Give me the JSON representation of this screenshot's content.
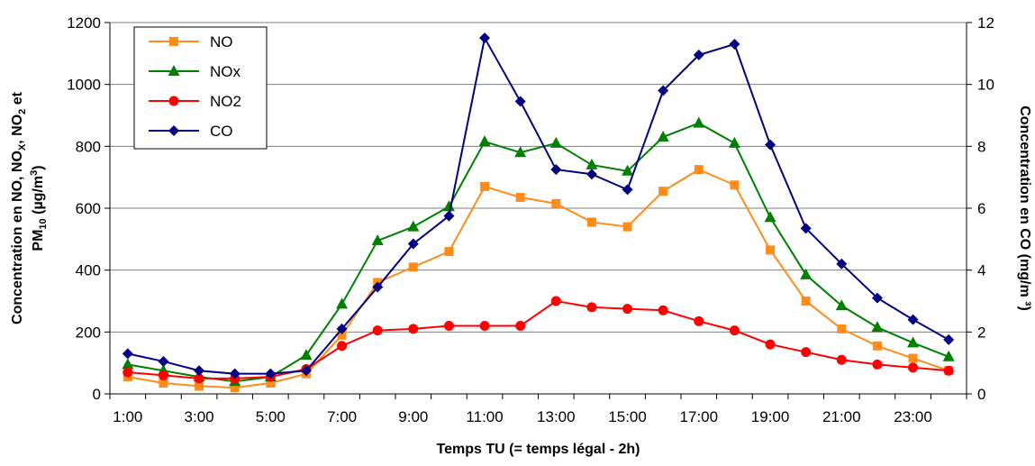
{
  "chart_data": {
    "type": "line",
    "x": [
      "1:00",
      "2:00",
      "3:00",
      "4:00",
      "5:00",
      "6:00",
      "7:00",
      "8:00",
      "9:00",
      "10:00",
      "11:00",
      "12:00",
      "13:00",
      "14:00",
      "15:00",
      "16:00",
      "17:00",
      "18:00",
      "19:00",
      "20:00",
      "21:00",
      "22:00",
      "23:00",
      "24:00"
    ],
    "x_tick_labels": [
      "1:00",
      "3:00",
      "5:00",
      "7:00",
      "9:00",
      "11:00",
      "13:00",
      "15:00",
      "17:00",
      "19:00",
      "21:00",
      "23:00"
    ],
    "xlabel": "Temps TU (= temps légal - 2h)",
    "ylabel_left": {
      "line1_parts": [
        "Concentration en NO, NO",
        "X",
        ", NO",
        "2",
        " et"
      ],
      "line2_parts": [
        "PM",
        "10",
        " (µg/m",
        "3",
        ")"
      ]
    },
    "ylabel_right": "Concentration en CO (mg/m ³)",
    "ylim_left": [
      0,
      1200
    ],
    "yticks_left": [
      "0",
      "200",
      "400",
      "600",
      "800",
      "1000",
      "1200"
    ],
    "ylim_right": [
      0,
      12
    ],
    "yticks_right": [
      "0",
      "2",
      "4",
      "6",
      "8",
      "10",
      "12"
    ],
    "grid": true,
    "legend_position": "top-left",
    "series": [
      {
        "name": "NO",
        "color": "#ff8c1a",
        "marker": "square",
        "axis": "left",
        "values": [
          55,
          35,
          25,
          20,
          35,
          65,
          190,
          360,
          410,
          460,
          670,
          635,
          615,
          555,
          540,
          655,
          725,
          675,
          465,
          300,
          210,
          155,
          115,
          75
        ]
      },
      {
        "name": "NOx",
        "color": "#008000",
        "marker": "triangle",
        "axis": "left",
        "values": [
          95,
          75,
          55,
          40,
          55,
          125,
          290,
          495,
          540,
          605,
          815,
          780,
          810,
          740,
          720,
          830,
          875,
          810,
          570,
          385,
          285,
          215,
          165,
          120
        ]
      },
      {
        "name": "NO2",
        "color": "#ff0000",
        "marker": "circle",
        "axis": "left",
        "values": [
          70,
          60,
          50,
          50,
          55,
          80,
          155,
          205,
          210,
          220,
          220,
          220,
          300,
          280,
          275,
          270,
          235,
          205,
          160,
          135,
          110,
          95,
          85,
          75
        ]
      },
      {
        "name": "CO",
        "color": "#000080",
        "marker": "diamond",
        "axis": "right",
        "values": [
          1.3,
          1.05,
          0.75,
          0.65,
          0.65,
          0.75,
          2.1,
          3.45,
          4.85,
          5.75,
          11.5,
          9.45,
          7.25,
          7.1,
          6.6,
          9.8,
          10.95,
          11.3,
          8.05,
          5.35,
          4.2,
          3.1,
          2.4,
          1.75
        ]
      }
    ]
  }
}
